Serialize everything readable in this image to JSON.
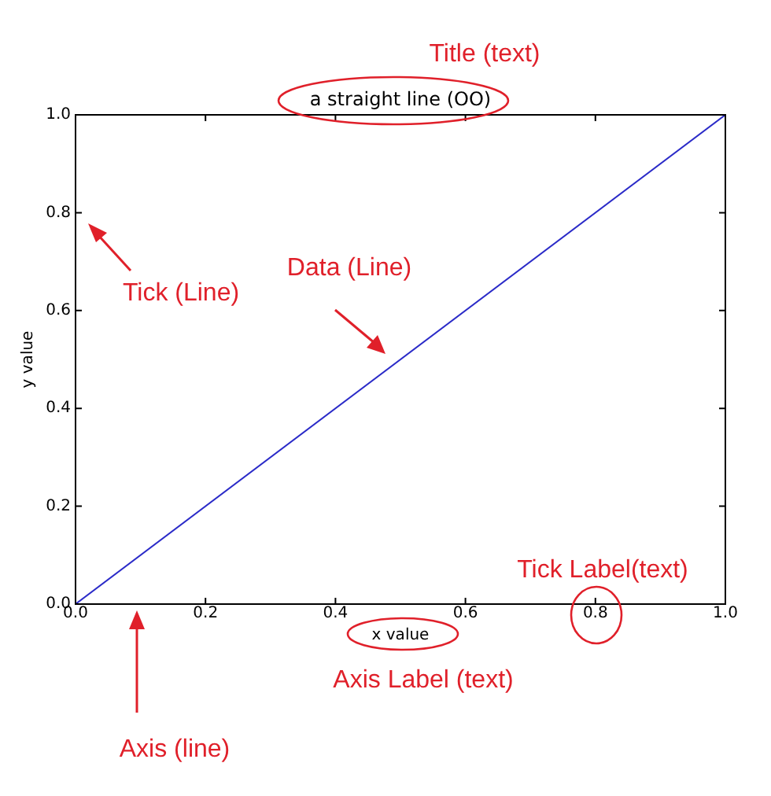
{
  "chart_data": {
    "type": "line",
    "title": "a straight line (OO)",
    "xlabel": "x value",
    "ylabel": "y value",
    "x": [
      0,
      1
    ],
    "series": [
      {
        "color": "#2a2ac8",
        "values": [
          0,
          1
        ]
      }
    ],
    "xlim": [
      0,
      1
    ],
    "ylim": [
      0,
      1
    ],
    "xticks": [
      {
        "value": 0,
        "label": "0.0"
      },
      {
        "value": 0.2,
        "label": "0.2"
      },
      {
        "value": 0.4,
        "label": "0.4"
      },
      {
        "value": 0.6,
        "label": "0.6"
      },
      {
        "value": 0.8,
        "label": "0.8"
      },
      {
        "value": 1,
        "label": "1.0"
      }
    ],
    "yticks": [
      {
        "value": 0,
        "label": "0.0"
      },
      {
        "value": 0.2,
        "label": "0.2"
      },
      {
        "value": 0.4,
        "label": "0.4"
      },
      {
        "value": 0.6,
        "label": "0.6"
      },
      {
        "value": 0.8,
        "label": "0.8"
      },
      {
        "value": 1,
        "label": "1.0"
      }
    ],
    "grid": false,
    "legend": false,
    "marker": "none",
    "line_style": "solid",
    "annotations": [
      "Title (text)",
      "Tick (Line)",
      "Data (Line)",
      "Tick Label(text)",
      "Axis Label (text)",
      "Axis (line)"
    ]
  }
}
